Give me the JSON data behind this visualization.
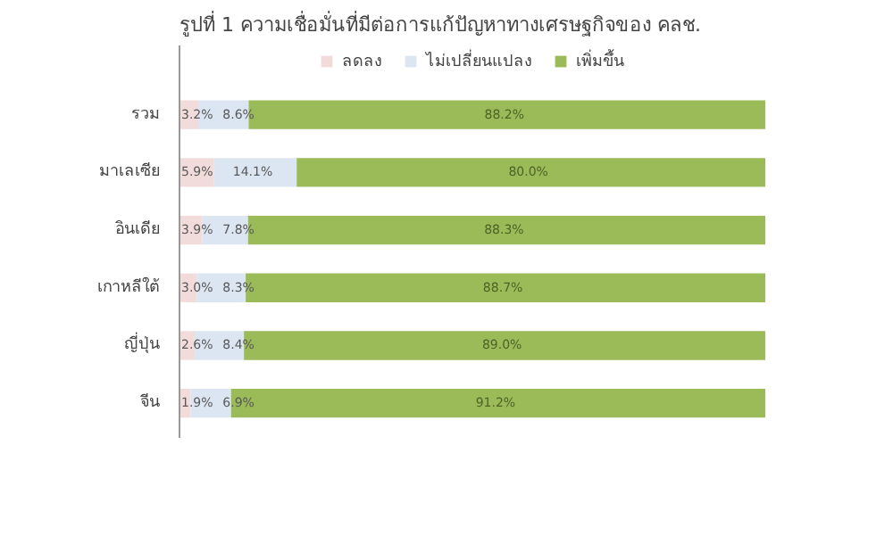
{
  "chart_data": {
    "type": "bar",
    "orientation": "horizontal",
    "stacked": true,
    "title": "รูปที่ 1 ความเชื่อมั่นที่มีต่อการแก้ปัญหาทางเศรษฐกิจของ คลช.",
    "categories": [
      "รวม",
      "มาเลเซีย",
      "อินเดีย",
      "เกาหลีใต้",
      "ญี่ปุ่น",
      "จีน"
    ],
    "xlim": [
      0,
      100
    ],
    "tick_labels": "y",
    "grid": false,
    "legend": "top",
    "series": [
      {
        "name": "ลดลง",
        "color": "#f2dcdb",
        "values": [
          3.2,
          5.9,
          3.9,
          3.0,
          2.6,
          1.9
        ],
        "value_labels": [
          "3.2%",
          "5.9%",
          "3.9%",
          "3.0%",
          "2.6%",
          "1.9%"
        ]
      },
      {
        "name": "ไม่เปลี่ยนแปลง",
        "color": "#dce6f2",
        "values": [
          8.6,
          14.1,
          7.8,
          8.3,
          8.4,
          6.9
        ],
        "value_labels": [
          "8.6%",
          "14.1%",
          "7.8%",
          "8.3%",
          "8.4%",
          "6.9%"
        ]
      },
      {
        "name": "เพิ่มขึ้น",
        "color": "#9bbb59",
        "values": [
          88.2,
          80.0,
          88.3,
          88.7,
          89.0,
          91.2
        ],
        "value_labels": [
          "88.2%",
          "80.0%",
          "88.3%",
          "88.7%",
          "89.0%",
          "91.2%"
        ]
      }
    ]
  }
}
